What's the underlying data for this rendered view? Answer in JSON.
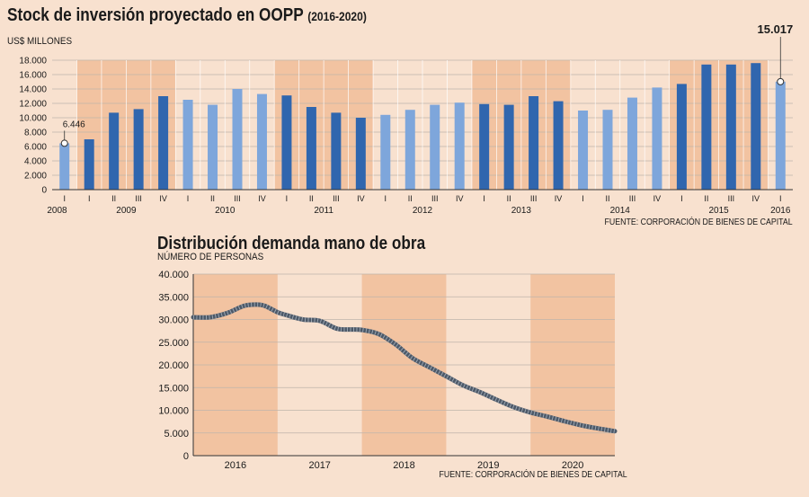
{
  "chart_data": [
    {
      "type": "bar",
      "title": "Stock de inversión proyectado en OOPP",
      "title_years": "(2016-2020)",
      "ylabel": "US$ MILLONES",
      "ylim": [
        0,
        18000
      ],
      "yticks": [
        "0",
        "2.000",
        "4.000",
        "6.000",
        "8.000",
        "10.000",
        "12.000",
        "14.000",
        "16.000",
        "18.000"
      ],
      "categories": [
        "I",
        "I",
        "II",
        "III",
        "IV",
        "I",
        "II",
        "III",
        "IV",
        "I",
        "II",
        "III",
        "IV",
        "I",
        "II",
        "III",
        "IV",
        "I",
        "II",
        "III",
        "IV",
        "I",
        "II",
        "III",
        "IV",
        "I",
        "II",
        "III",
        "IV",
        "I"
      ],
      "years": [
        "2008",
        "2009",
        "2010",
        "2011",
        "2012",
        "2013",
        "2014",
        "2015",
        "2016"
      ],
      "values": [
        6446,
        7000,
        10700,
        11200,
        13000,
        12500,
        11800,
        14000,
        13300,
        13100,
        11500,
        10700,
        10000,
        10400,
        11100,
        11800,
        12100,
        11900,
        11800,
        13000,
        12300,
        11000,
        11100,
        12800,
        14200,
        14700,
        17400,
        17400,
        17600,
        15017
      ],
      "annotations": [
        {
          "label": "6.446",
          "index": 0
        },
        {
          "label": "15.017",
          "index": 29
        }
      ],
      "colors": {
        "dark": "#3066ae",
        "light": "#7ea6db",
        "band": "#f2c3a1",
        "bg": "#f8e1cf"
      },
      "source": "FUENTE: CORPORACIÓN DE BIENES DE CAPITAL"
    },
    {
      "type": "line",
      "title": "Distribución demanda mano de obra",
      "ylabel": "NÚMERO DE PERSONAS",
      "ylim": [
        0,
        40000
      ],
      "yticks": [
        "0",
        "5.000",
        "10.000",
        "15.000",
        "20.000",
        "25.000",
        "30.000",
        "35.000",
        "40.000"
      ],
      "categories": [
        "2016",
        "2017",
        "2018",
        "2019",
        "2020"
      ],
      "x": [
        0.0,
        0.2,
        0.4,
        0.6,
        0.75,
        0.85,
        1.0,
        1.1,
        1.3,
        1.5,
        1.7,
        1.85,
        2.0,
        2.2,
        2.4,
        2.6,
        2.8,
        3.0,
        3.2,
        3.4,
        3.6,
        3.8,
        4.0,
        4.2,
        4.4,
        4.6,
        4.8,
        5.0
      ],
      "values": [
        30500,
        30500,
        31400,
        33000,
        33300,
        33000,
        31600,
        31000,
        30000,
        29700,
        28000,
        27800,
        27700,
        26800,
        24500,
        21500,
        19500,
        17500,
        15500,
        14000,
        12300,
        10700,
        9500,
        8600,
        7600,
        6700,
        6000,
        5400
      ],
      "colors": {
        "line": "#4d5968",
        "band": "#f2c3a1",
        "bg": "#f8e1cf"
      },
      "source": "FUENTE: CORPORACIÓN DE BIENES DE CAPITAL"
    }
  ]
}
